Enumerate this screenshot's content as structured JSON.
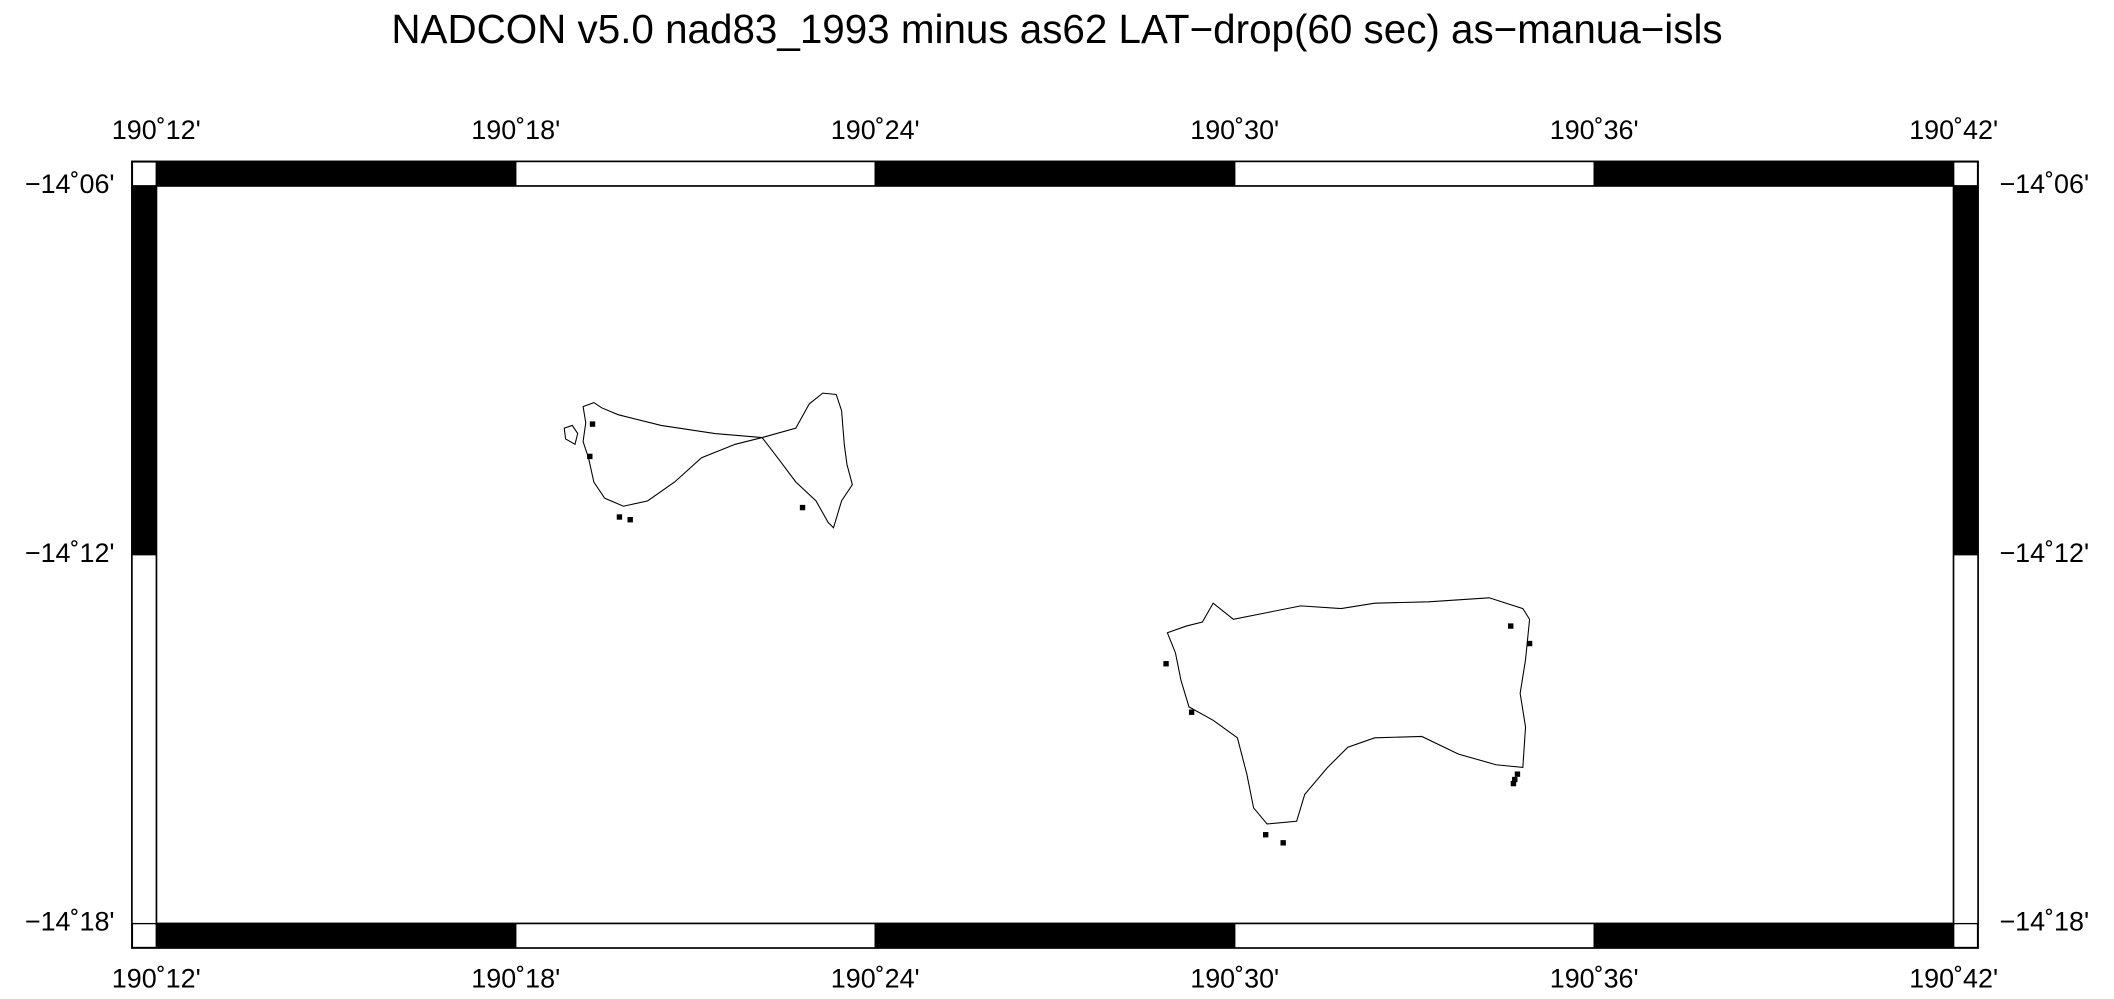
{
  "title": "NADCON v5.0 nad83_1993 minus as62 LAT−drop(60 sec) as−manua−isls",
  "longitude_labels": [
    "190˚12'",
    "190˚18'",
    "190˚24'",
    "190˚30'",
    "190˚36'",
    "190˚42'"
  ],
  "latitude_labels": [
    "−14˚06'",
    "−14˚12'",
    "−14˚18'"
  ]
}
